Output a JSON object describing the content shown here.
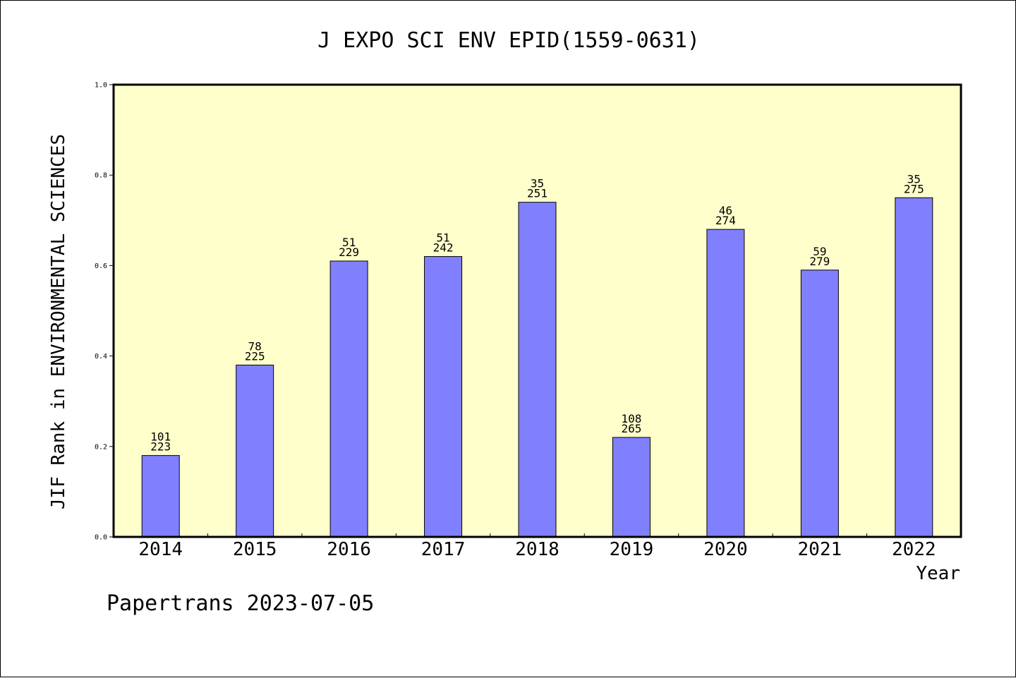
{
  "chart_data": {
    "type": "bar",
    "title": "J EXPO SCI ENV EPID(1559-0631)",
    "xlabel": "Year",
    "ylabel": "JIF Rank in ENVIRONMENTAL SCIENCES",
    "categories": [
      "2014",
      "2015",
      "2016",
      "2017",
      "2018",
      "2019",
      "2020",
      "2021",
      "2022"
    ],
    "values": [
      0.18,
      0.38,
      0.61,
      0.62,
      0.74,
      0.22,
      0.68,
      0.59,
      0.75
    ],
    "rank_labels": [
      "101",
      "78",
      "51",
      "51",
      "35",
      "108",
      "46",
      "59",
      "35"
    ],
    "total_labels": [
      "223",
      "225",
      "229",
      "242",
      "251",
      "265",
      "274",
      "279",
      "275"
    ],
    "ylim": [
      0,
      1.0
    ],
    "yticks": [
      "0.0",
      "0.2",
      "0.4",
      "0.6",
      "0.8",
      "1.0"
    ],
    "grid": false,
    "colors": {
      "bar": "#8080ff",
      "plot_bg": "#ffffcc",
      "axis": "#000000"
    }
  },
  "footer": "Papertrans 2023-07-05"
}
